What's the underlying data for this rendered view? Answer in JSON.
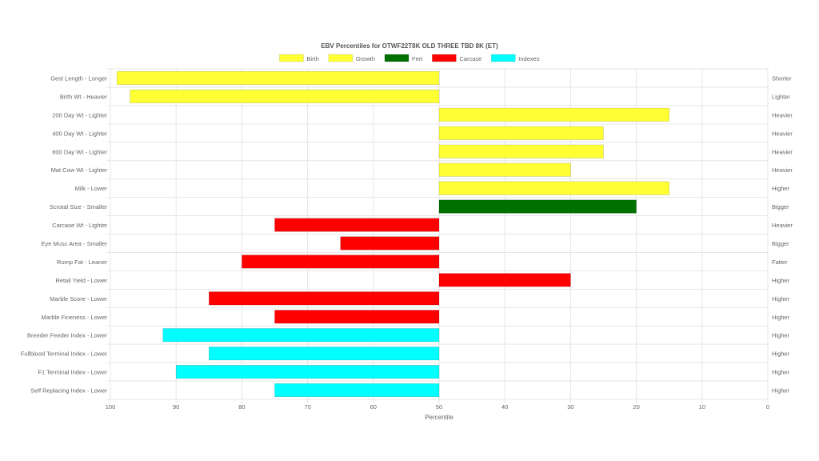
{
  "chart_data": {
    "type": "bar",
    "orientation": "horizontal",
    "title": "EBV Percentiles for OTWF22T8K OLD THREE TBD 8K (ET)",
    "xlabel": "Percentile",
    "xlim": [
      100,
      0
    ],
    "x_reversed": true,
    "baseline": 50,
    "x_ticks": [
      "100",
      "90",
      "80",
      "70",
      "60",
      "50",
      "40",
      "30",
      "20",
      "10",
      "0"
    ],
    "grid": true,
    "legend_position": "top",
    "legend": [
      {
        "name": "Birth",
        "color": "#ffff33"
      },
      {
        "name": "Growth",
        "color": "#ffff33"
      },
      {
        "name": "Fert",
        "color": "#007000"
      },
      {
        "name": "Carcase",
        "color": "#ff0000"
      },
      {
        "name": "Indexes",
        "color": "#00ffff"
      }
    ],
    "traits": [
      {
        "label": "Gest Length - Longer",
        "right_label": "Shorter",
        "value": 99,
        "group": "Birth"
      },
      {
        "label": "Birth Wt - Heavier",
        "right_label": "Lighter",
        "value": 97,
        "group": "Birth"
      },
      {
        "label": "200 Day Wt - Lighter",
        "right_label": "Heavier",
        "value": 15,
        "group": "Growth"
      },
      {
        "label": "400 Day Wt - Lighter",
        "right_label": "Heavier",
        "value": 25,
        "group": "Growth"
      },
      {
        "label": "600 Day Wt - Lighter",
        "right_label": "Heavier",
        "value": 25,
        "group": "Growth"
      },
      {
        "label": "Mat Cow Wt - Lighter",
        "right_label": "Heavier",
        "value": 30,
        "group": "Growth"
      },
      {
        "label": "Milk - Lower",
        "right_label": "Higher",
        "value": 15,
        "group": "Growth"
      },
      {
        "label": "Scrotal Size - Smaller",
        "right_label": "Bigger",
        "value": 20,
        "group": "Fert"
      },
      {
        "label": "Carcase Wt - Lighter",
        "right_label": "Heavier",
        "value": 75,
        "group": "Carcase"
      },
      {
        "label": "Eye Musc Area - Smaller",
        "right_label": "Bigger",
        "value": 65,
        "group": "Carcase"
      },
      {
        "label": "Rump Fat - Leaner",
        "right_label": "Fatter",
        "value": 80,
        "group": "Carcase"
      },
      {
        "label": "Retail Yield - Lower",
        "right_label": "Higher",
        "value": 30,
        "group": "Carcase"
      },
      {
        "label": "Marble Score - Lower",
        "right_label": "Higher",
        "value": 85,
        "group": "Carcase"
      },
      {
        "label": "Marble Fineness - Lower",
        "right_label": "Higher",
        "value": 75,
        "group": "Carcase"
      },
      {
        "label": "Breeder Feeder Index - Lower",
        "right_label": "Higher",
        "value": 92,
        "group": "Indexes"
      },
      {
        "label": "Fullblood Terminal Index - Lower",
        "right_label": "Higher",
        "value": 85,
        "group": "Indexes"
      },
      {
        "label": "F1 Terminal Index - Lower",
        "right_label": "Higher",
        "value": 90,
        "group": "Indexes"
      },
      {
        "label": "Self Replacing Index - Lower",
        "right_label": "Higher",
        "value": 75,
        "group": "Indexes"
      }
    ]
  }
}
